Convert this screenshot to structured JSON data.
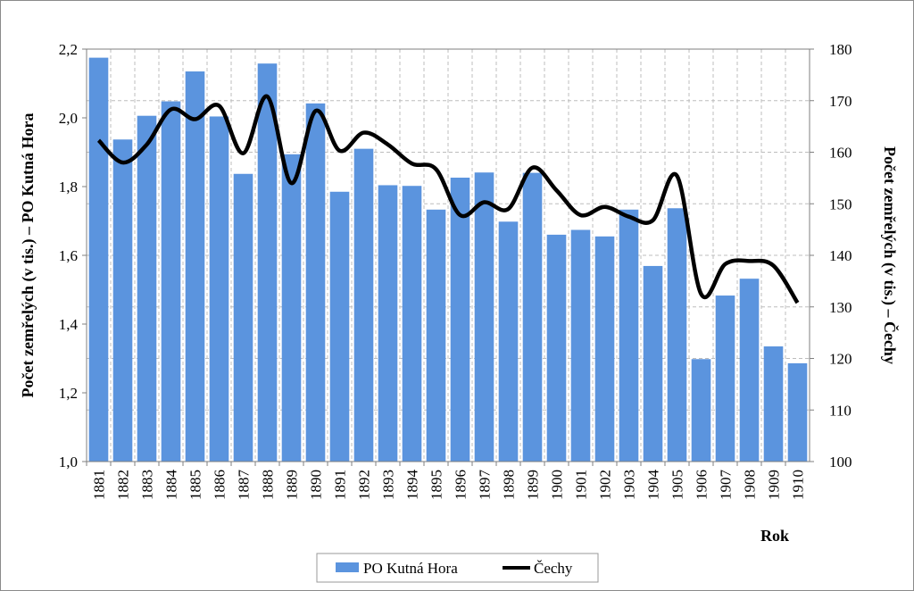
{
  "chart_data": {
    "type": "bar",
    "categories": [
      "1881",
      "1882",
      "1883",
      "1884",
      "1885",
      "1886",
      "1887",
      "1888",
      "1889",
      "1890",
      "1891",
      "1892",
      "1893",
      "1894",
      "1895",
      "1896",
      "1897",
      "1898",
      "1899",
      "1900",
      "1901",
      "1902",
      "1903",
      "1904",
      "1905",
      "1906",
      "1907",
      "1908",
      "1909",
      "1910"
    ],
    "series": [
      {
        "name": "PO Kutná Hora",
        "type": "bar",
        "axis": "left",
        "color": "#5b94de",
        "values": [
          2.175,
          1.937,
          2.006,
          2.048,
          2.135,
          2.004,
          1.837,
          2.158,
          1.894,
          2.042,
          1.785,
          1.91,
          1.804,
          1.802,
          1.733,
          1.826,
          1.841,
          1.698,
          1.84,
          1.66,
          1.674,
          1.655,
          1.733,
          1.569,
          1.737,
          1.298,
          1.483,
          1.532,
          1.335,
          1.286
        ]
      },
      {
        "name": "Čechy",
        "type": "line",
        "axis": "right",
        "color": "#000000",
        "values": [
          162.3,
          158.0,
          161.5,
          168.3,
          166.4,
          169.0,
          159.8,
          170.8,
          154.0,
          168.0,
          160.3,
          163.8,
          161.5,
          157.8,
          156.7,
          147.8,
          150.3,
          149.0,
          157.0,
          152.6,
          147.8,
          149.4,
          147.5,
          146.8,
          155.4,
          132.5,
          138.3,
          138.9,
          138.0,
          130.8
        ]
      }
    ],
    "xlabel": "Rok",
    "ylabel_left": "Počet zemřelých  (v tis.) – PO Kutná Hora",
    "ylabel_right": "Počet zemřelých (v tis.) – Čechy",
    "ylim_left": [
      1.0,
      2.2
    ],
    "yticks_left": [
      "1,0",
      "1,2",
      "1,4",
      "1,6",
      "1,8",
      "2,0",
      "2,2"
    ],
    "ylim_right": [
      100,
      180
    ],
    "yticks_right": [
      "100",
      "110",
      "120",
      "130",
      "140",
      "150",
      "160",
      "170",
      "180"
    ],
    "grid": true,
    "legend_position": "bottom"
  }
}
